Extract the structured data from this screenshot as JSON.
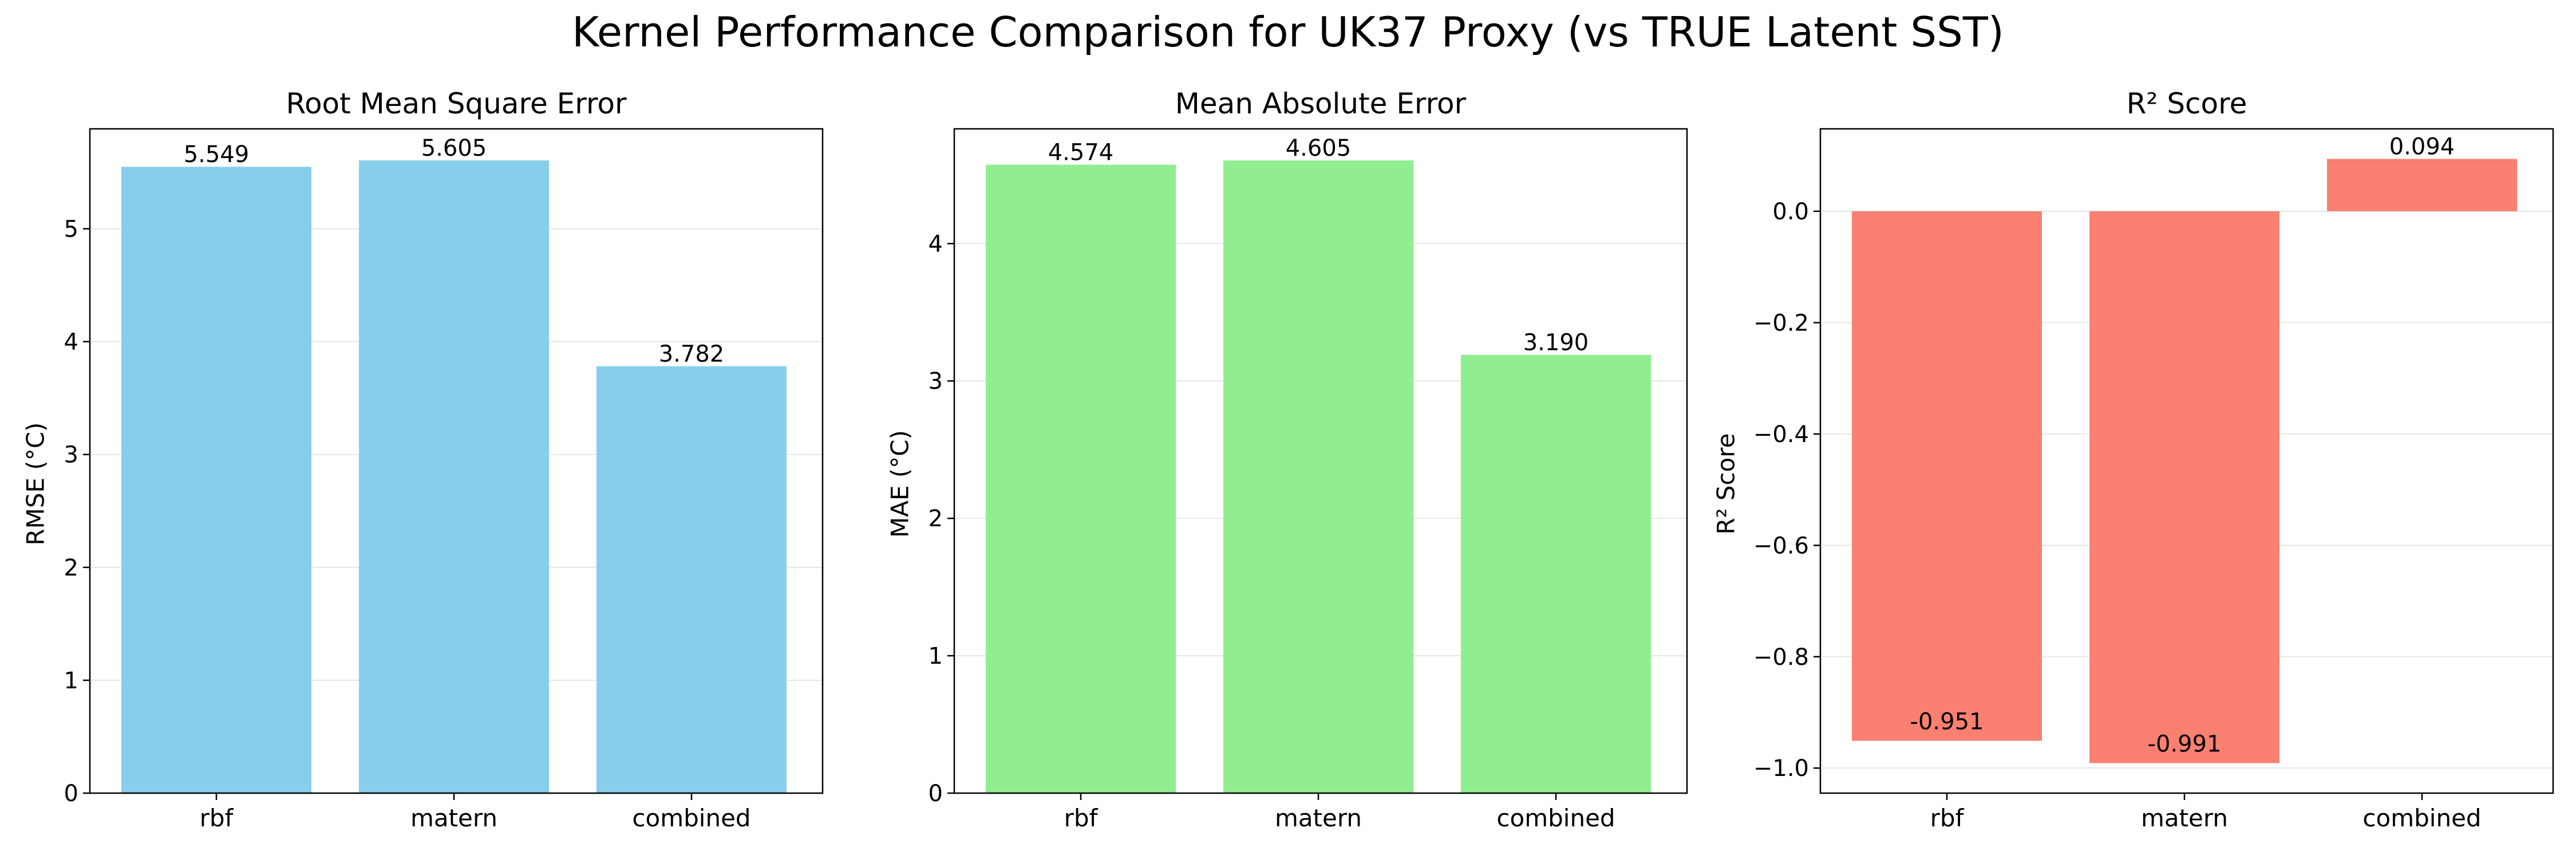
{
  "title": "Kernel Performance Comparison for UK37 Proxy (vs TRUE Latent SST)",
  "colors": {
    "rmse": "#87ceeb",
    "mae": "#90ee90",
    "r2": "#fa8072",
    "grid": "#e6e6e6",
    "axis": "#000000"
  },
  "chart_data": [
    {
      "type": "bar",
      "title": "Root Mean Square Error",
      "xlabel": "",
      "ylabel": "RMSE (°C)",
      "categories": [
        "rbf",
        "matern",
        "combined"
      ],
      "values": [
        5.549,
        5.605,
        3.782
      ],
      "value_labels": [
        "5.549",
        "5.605",
        "3.782"
      ],
      "ylim": [
        0,
        5.885
      ],
      "yticks": [
        0,
        1,
        2,
        3,
        4,
        5
      ],
      "ytick_labels": [
        "0",
        "1",
        "2",
        "3",
        "4",
        "5"
      ],
      "grid": "y"
    },
    {
      "type": "bar",
      "title": "Mean Absolute Error",
      "xlabel": "",
      "ylabel": "MAE (°C)",
      "categories": [
        "rbf",
        "matern",
        "combined"
      ],
      "values": [
        4.574,
        4.605,
        3.19
      ],
      "value_labels": [
        "4.574",
        "4.605",
        "3.190"
      ],
      "ylim": [
        0,
        4.835
      ],
      "yticks": [
        0,
        1,
        2,
        3,
        4
      ],
      "ytick_labels": [
        "0",
        "1",
        "2",
        "3",
        "4"
      ],
      "grid": "y"
    },
    {
      "type": "bar",
      "title": "R² Score",
      "xlabel": "",
      "ylabel": "R² Score",
      "categories": [
        "rbf",
        "matern",
        "combined"
      ],
      "values": [
        -0.951,
        -0.991,
        0.094
      ],
      "value_labels": [
        "-0.951",
        "-0.991",
        "0.094"
      ],
      "ylim": [
        -1.045,
        0.148
      ],
      "yticks": [
        -1.0,
        -0.8,
        -0.6,
        -0.4,
        -0.2,
        0.0
      ],
      "ytick_labels": [
        "−1.0",
        "−0.8",
        "−0.6",
        "−0.4",
        "−0.2",
        "0.0"
      ],
      "grid": "y"
    }
  ]
}
